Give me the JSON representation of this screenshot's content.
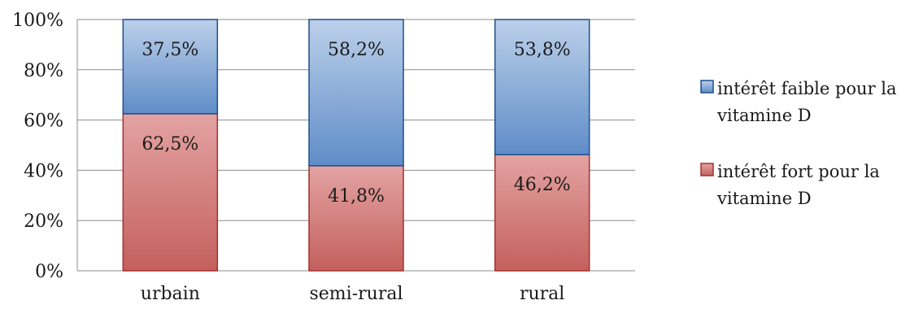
{
  "chart_data": {
    "type": "bar",
    "stacked": true,
    "percent_stacked": true,
    "categories": [
      "urbain",
      "semi-rural",
      "rural"
    ],
    "series": [
      {
        "name": "intérêt fort pour la vitamine D",
        "legend_lines": [
          "intérêt fort pour la",
          "vitamine D"
        ],
        "values": [
          62.5,
          41.8,
          46.2
        ],
        "labels": [
          "62,5%",
          "41,8%",
          "46,2%"
        ],
        "color_light": "#e3a3a2",
        "color_dark": "#c4605d",
        "border": "#a3302e"
      },
      {
        "name": "intérêt faible pour la vitamine D",
        "legend_lines": [
          "intérêt faible pour la",
          "vitamine D"
        ],
        "values": [
          37.5,
          58.2,
          53.8
        ],
        "labels": [
          "37,5%",
          "58,2%",
          "53,8%"
        ],
        "color_light": "#bcd0ea",
        "color_dark": "#5f8dc8",
        "border": "#1f4e8c"
      }
    ],
    "ylim": [
      0,
      100
    ],
    "yticks": [
      "0%",
      "20%",
      "40%",
      "60%",
      "80%",
      "100%"
    ],
    "grid": true,
    "legend_position": "right",
    "title": "",
    "xlabel": "",
    "ylabel": ""
  }
}
